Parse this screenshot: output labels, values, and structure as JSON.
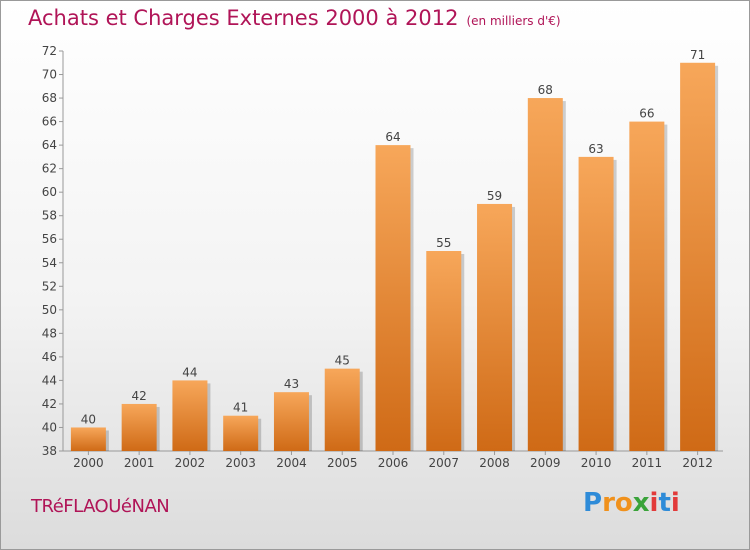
{
  "header": {
    "title": "Achats et Charges Externes 2000 à 2012",
    "unit": "(en milliers d'€)"
  },
  "footer": {
    "commune": "TRéFLAOUéNAN",
    "logo": {
      "text": "Proxiti",
      "colors": [
        "#2e8bd8",
        "#f0911c",
        "#f0911c",
        "#3aa33a",
        "#e23a3a",
        "#2e8bd8",
        "#e23a3a"
      ]
    }
  },
  "chart_data": {
    "type": "bar",
    "title": "Achats et Charges Externes 2000 à 2012",
    "subtitle": "(en milliers d'€)",
    "categories": [
      "2000",
      "2001",
      "2002",
      "2003",
      "2004",
      "2005",
      "2006",
      "2007",
      "2008",
      "2009",
      "2010",
      "2011",
      "2012"
    ],
    "values": [
      40,
      42,
      44,
      41,
      43,
      45,
      64,
      55,
      59,
      68,
      63,
      66,
      71
    ],
    "ylim": [
      38,
      72
    ],
    "yticks": [
      38,
      40,
      42,
      44,
      46,
      48,
      50,
      52,
      54,
      56,
      58,
      60,
      62,
      64,
      66,
      68,
      70,
      72
    ],
    "xlabel": "",
    "ylabel": "",
    "grid": false,
    "bar_color_top": "#f7a75a",
    "bar_color_bottom": "#cf6a16"
  }
}
